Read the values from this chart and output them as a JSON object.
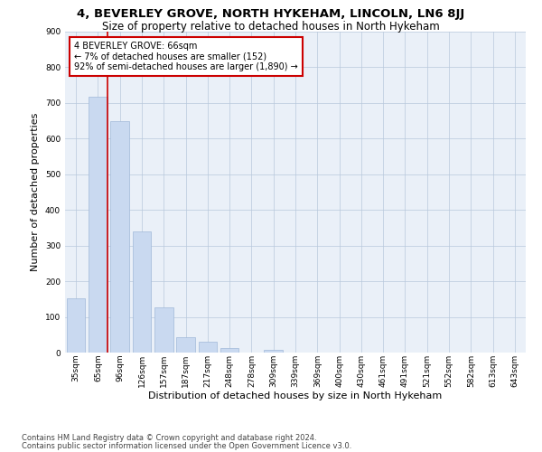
{
  "title": "4, BEVERLEY GROVE, NORTH HYKEHAM, LINCOLN, LN6 8JJ",
  "subtitle": "Size of property relative to detached houses in North Hykeham",
  "xlabel": "Distribution of detached houses by size in North Hykeham",
  "ylabel": "Number of detached properties",
  "categories": [
    "35sqm",
    "65sqm",
    "96sqm",
    "126sqm",
    "157sqm",
    "187sqm",
    "217sqm",
    "248sqm",
    "278sqm",
    "309sqm",
    "339sqm",
    "369sqm",
    "400sqm",
    "430sqm",
    "461sqm",
    "491sqm",
    "521sqm",
    "552sqm",
    "582sqm",
    "613sqm",
    "643sqm"
  ],
  "values": [
    152,
    718,
    648,
    340,
    128,
    42,
    30,
    12,
    0,
    8,
    0,
    0,
    0,
    0,
    0,
    0,
    0,
    0,
    0,
    0,
    0
  ],
  "bar_color": "#c9d9f0",
  "bar_edge_color": "#a0b8d8",
  "vline_index": 1,
  "vline_color": "#cc0000",
  "annotation_text": "4 BEVERLEY GROVE: 66sqm\n← 7% of detached houses are smaller (152)\n92% of semi-detached houses are larger (1,890) →",
  "annotation_box_color": "#ffffff",
  "annotation_box_edge_color": "#cc0000",
  "ylim": [
    0,
    900
  ],
  "yticks": [
    0,
    100,
    200,
    300,
    400,
    500,
    600,
    700,
    800,
    900
  ],
  "footer_line1": "Contains HM Land Registry data © Crown copyright and database right 2024.",
  "footer_line2": "Contains public sector information licensed under the Open Government Licence v3.0.",
  "plot_bg_color": "#eaf0f8",
  "title_fontsize": 9.5,
  "subtitle_fontsize": 8.5,
  "tick_fontsize": 6.5,
  "ylabel_fontsize": 8,
  "xlabel_fontsize": 8,
  "annotation_fontsize": 7,
  "footer_fontsize": 6
}
